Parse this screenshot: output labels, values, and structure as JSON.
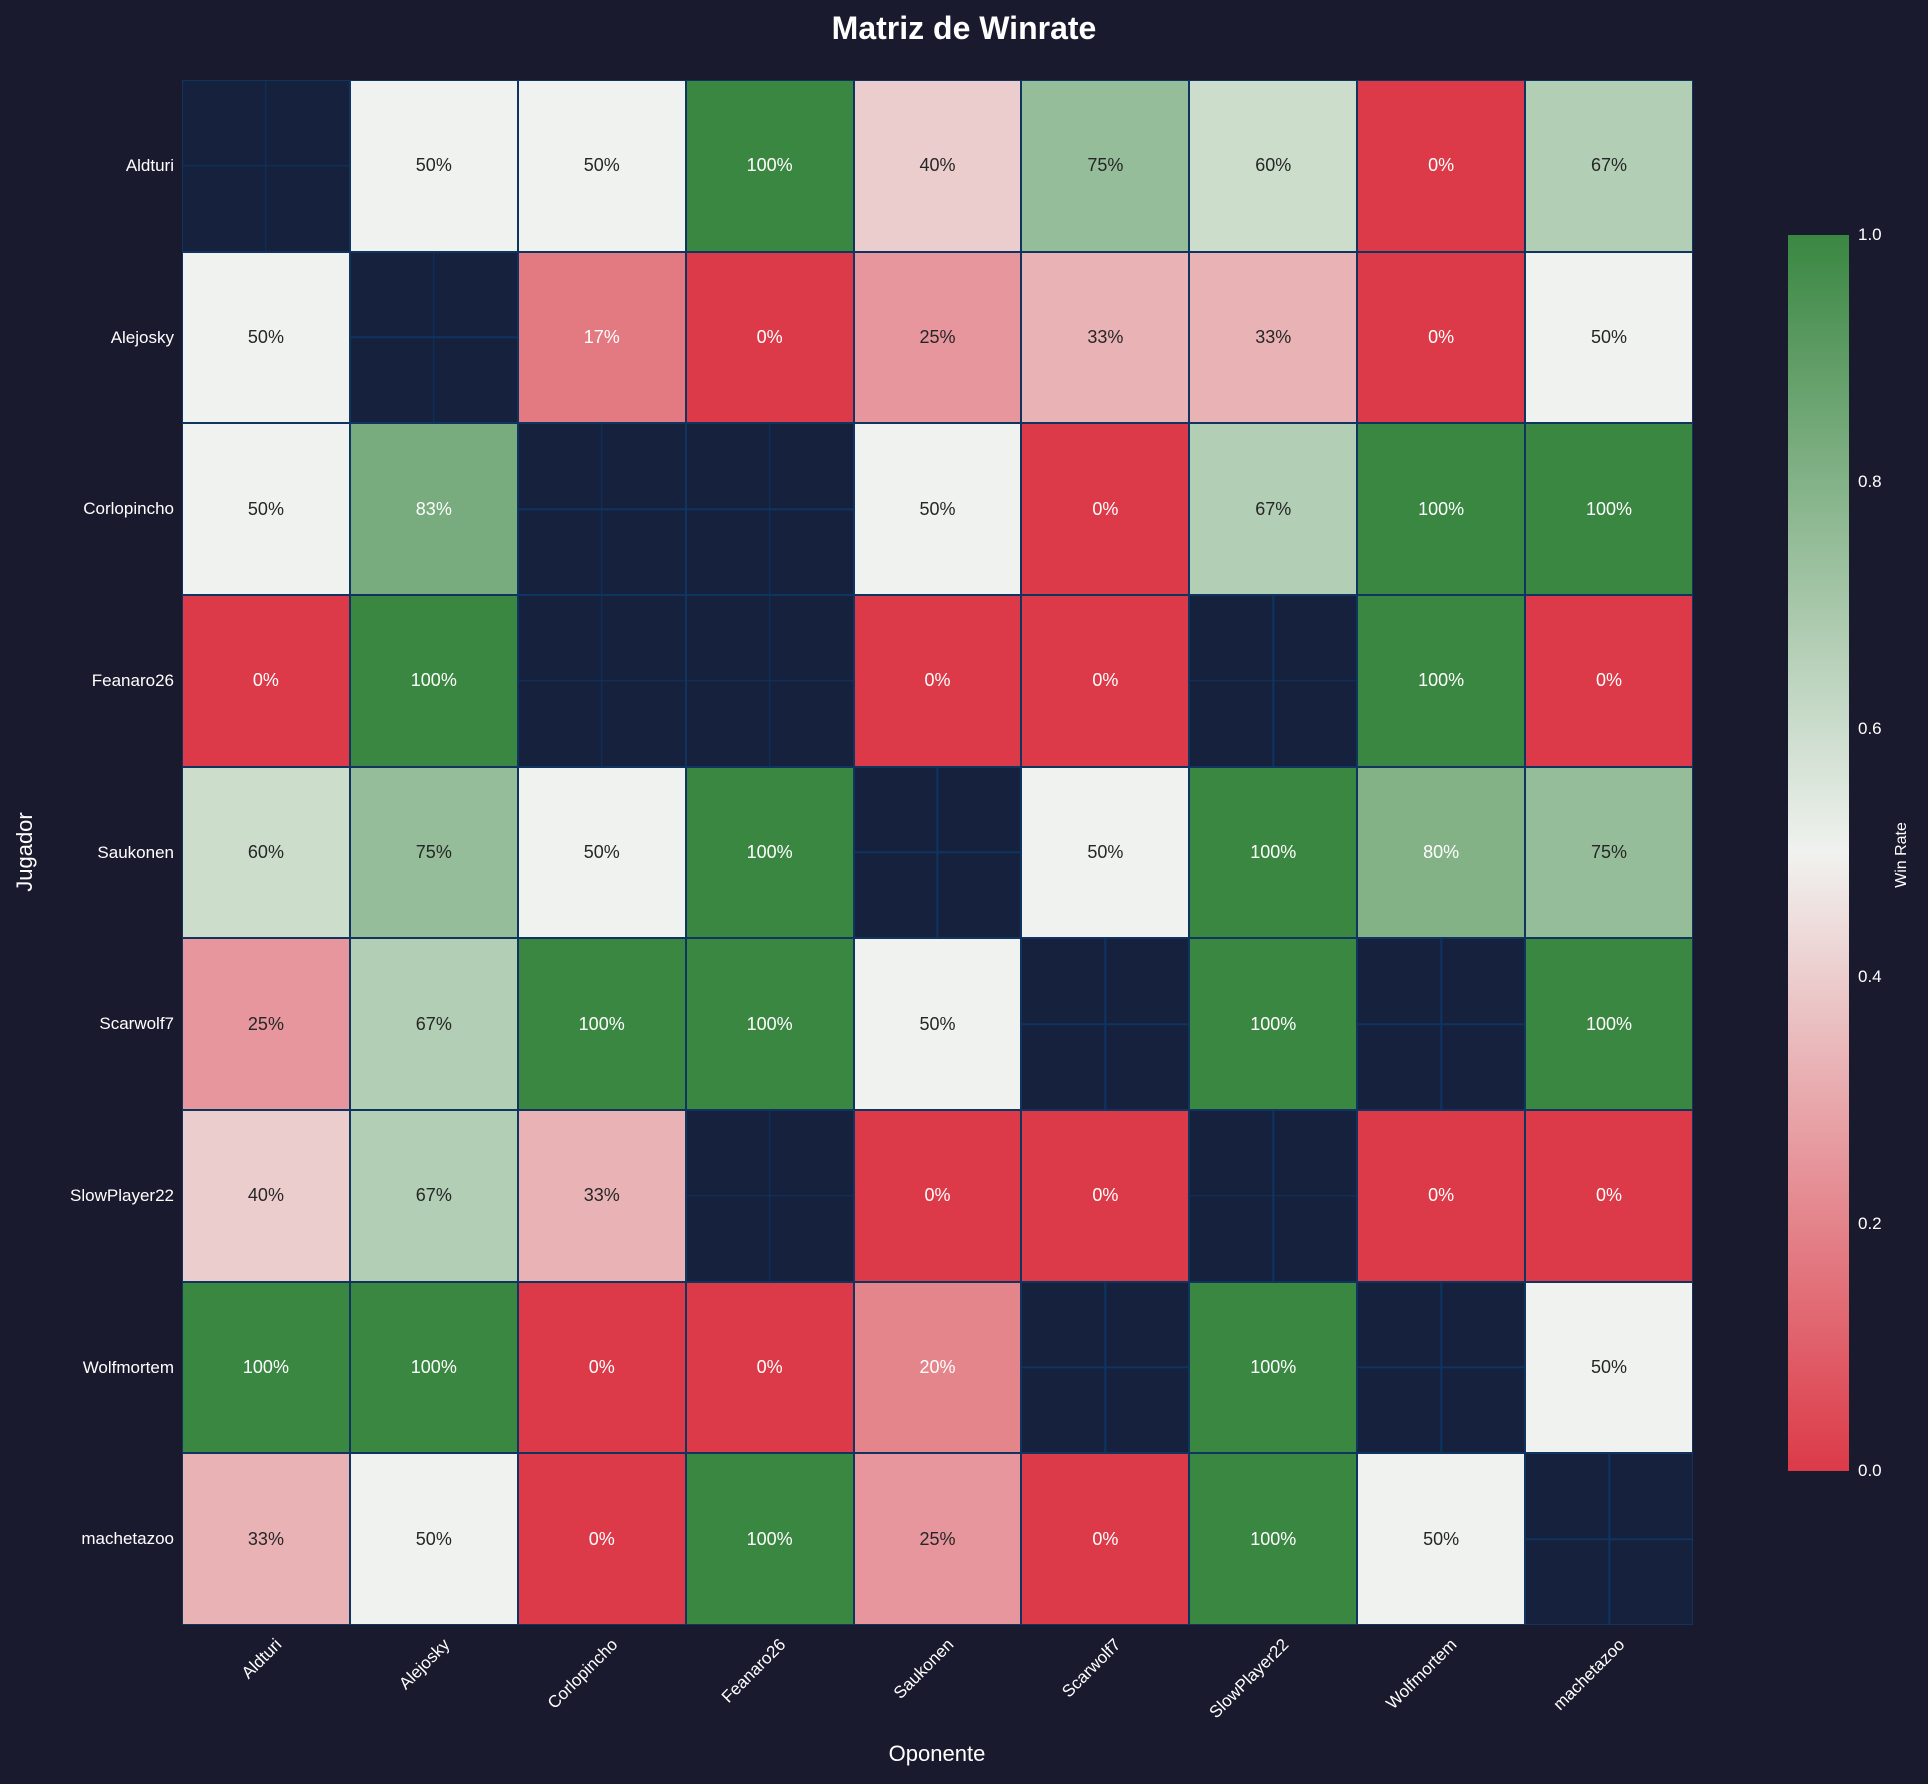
{
  "chart_data": {
    "type": "heatmap",
    "title": "Matriz de Winrate",
    "xlabel": "Oponente",
    "ylabel": "Jugador",
    "rows": [
      "Aldturi",
      "Alejosky",
      "Corlopincho",
      "Feanaro26",
      "Saukonen",
      "Scarwolf7",
      "SlowPlayer22",
      "Wolfmortem",
      "machetazoo"
    ],
    "columns": [
      "Aldturi",
      "Alejosky",
      "Corlopincho",
      "Feanaro26",
      "Saukonen",
      "Scarwolf7",
      "SlowPlayer22",
      "Wolfmortem",
      "machetazoo"
    ],
    "values": [
      [
        null,
        0.5,
        0.5,
        1.0,
        0.4,
        0.75,
        0.6,
        0.0,
        0.67
      ],
      [
        0.5,
        null,
        0.17,
        0.0,
        0.25,
        0.33,
        0.33,
        0.0,
        0.5
      ],
      [
        0.5,
        0.83,
        null,
        null,
        0.5,
        0.0,
        0.67,
        1.0,
        1.0
      ],
      [
        0.0,
        1.0,
        null,
        null,
        0.0,
        0.0,
        null,
        1.0,
        0.0
      ],
      [
        0.6,
        0.75,
        0.5,
        1.0,
        null,
        0.5,
        1.0,
        0.8,
        0.75
      ],
      [
        0.25,
        0.67,
        1.0,
        1.0,
        0.5,
        null,
        1.0,
        null,
        1.0
      ],
      [
        0.4,
        0.67,
        0.33,
        null,
        0.0,
        0.0,
        null,
        0.0,
        0.0
      ],
      [
        1.0,
        1.0,
        0.0,
        0.0,
        0.2,
        null,
        1.0,
        null,
        0.5
      ],
      [
        0.33,
        0.5,
        0.0,
        1.0,
        0.25,
        0.0,
        1.0,
        0.5,
        null
      ]
    ],
    "annotations": [
      [
        "",
        "50%",
        "50%",
        "100%",
        "40%",
        "75%",
        "60%",
        "0%",
        "67%"
      ],
      [
        "50%",
        "",
        "17%",
        "0%",
        "25%",
        "33%",
        "33%",
        "0%",
        "50%"
      ],
      [
        "50%",
        "83%",
        "",
        "",
        "50%",
        "0%",
        "67%",
        "100%",
        "100%"
      ],
      [
        "0%",
        "100%",
        "",
        "",
        "0%",
        "0%",
        "",
        "100%",
        "0%"
      ],
      [
        "60%",
        "75%",
        "50%",
        "100%",
        "",
        "50%",
        "100%",
        "80%",
        "75%"
      ],
      [
        "25%",
        "67%",
        "100%",
        "100%",
        "50%",
        "",
        "100%",
        "",
        "100%"
      ],
      [
        "40%",
        "67%",
        "33%",
        "",
        "0%",
        "0%",
        "",
        "0%",
        "0%"
      ],
      [
        "100%",
        "100%",
        "0%",
        "0%",
        "20%",
        "",
        "100%",
        "",
        "50%"
      ],
      [
        "33%",
        "50%",
        "0%",
        "100%",
        "25%",
        "0%",
        "100%",
        "50%",
        ""
      ]
    ],
    "colorbar": {
      "label": "Win Rate",
      "range": [
        0.0,
        1.0
      ],
      "ticks": [
        "0.0",
        "0.2",
        "0.4",
        "0.6",
        "0.8",
        "1.0"
      ],
      "colormap": {
        "low": "#dc3a48",
        "mid": "#f0f2ef",
        "high": "#3a8742"
      }
    },
    "legend_position": "right",
    "grid": false
  },
  "colors": {
    "background": "#1a1a2e",
    "empty_cell": "#16213e",
    "cell_border": "#0f3460",
    "text_light": "#ffffff",
    "text_dark": "#262626"
  }
}
